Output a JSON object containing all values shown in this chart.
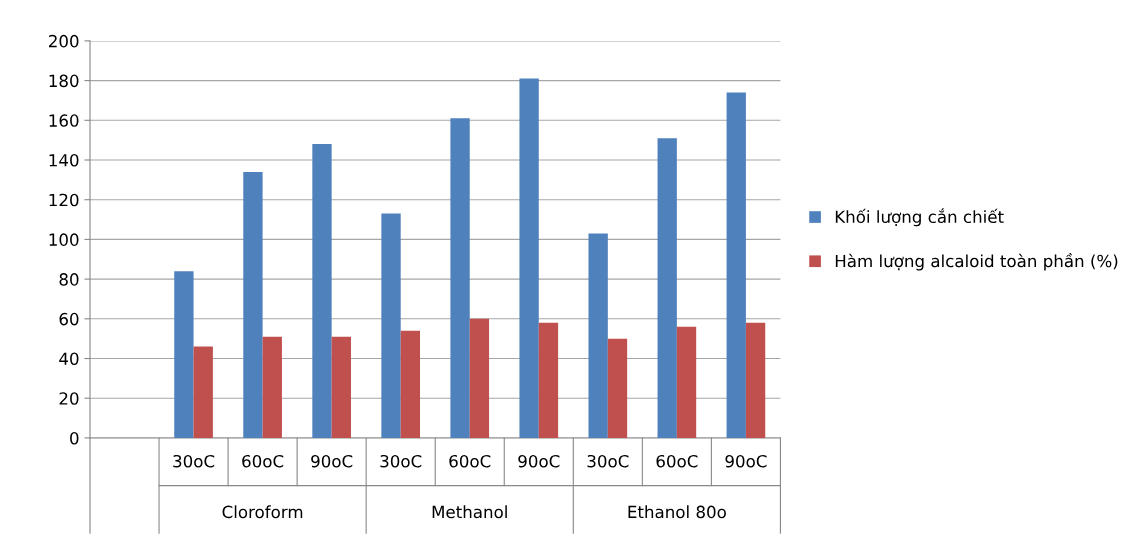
{
  "chart_data": {
    "type": "bar",
    "categories": [
      null,
      "30oC",
      "60oC",
      "90oC",
      "30oC",
      "60oC",
      "90oC",
      "30oC",
      "60oC",
      "90oC"
    ],
    "series": [
      {
        "name": "Khối lượng cắn chiết",
        "color": "#4f81bd",
        "values": [
          null,
          84,
          134,
          148,
          113,
          161,
          181,
          103,
          151,
          174
        ]
      },
      {
        "name": "Hàm lượng alcaloid toàn phần (%)",
        "color": "#c0504d",
        "values": [
          null,
          46,
          51,
          51,
          54,
          60,
          58,
          50,
          56,
          58
        ]
      }
    ],
    "annotations": [
      "Cloroform",
      "Methanol",
      "Ethanol 80o"
    ],
    "ylim": [
      0,
      200
    ],
    "yticks": [
      0,
      20,
      40,
      60,
      80,
      100,
      120,
      140,
      160,
      180,
      200
    ],
    "grid": "y",
    "legend": "right"
  }
}
